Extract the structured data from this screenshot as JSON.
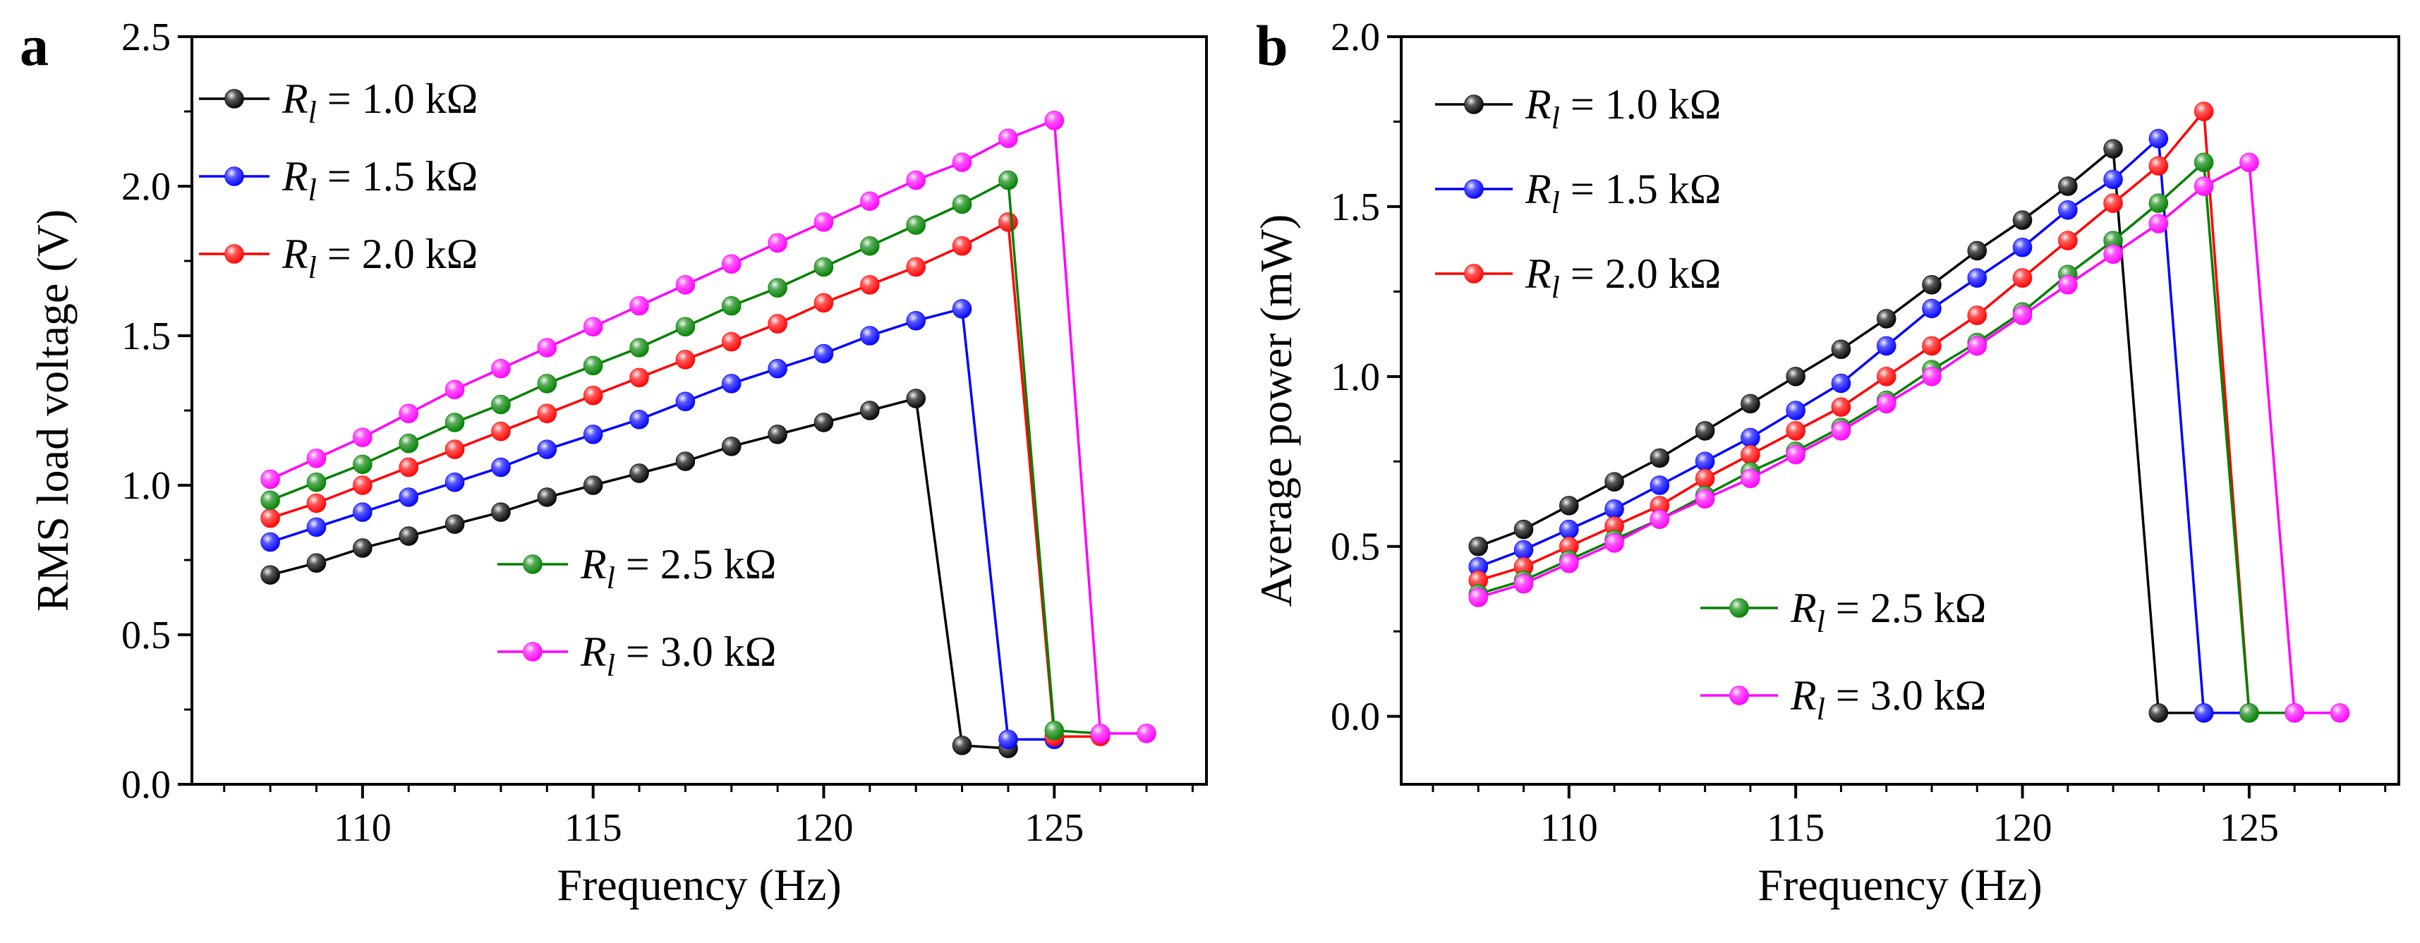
{
  "figure": {
    "panels": [
      {
        "label": "a",
        "title": "",
        "xlabel": "Frequency (Hz)",
        "ylabel": "RMS load voltage (V)"
      },
      {
        "label": "b",
        "title": "",
        "xlabel": "Frequency (Hz)",
        "ylabel": "Average power (mW)"
      }
    ]
  },
  "chart_data": [
    {
      "type": "line",
      "panel": "a",
      "title": "",
      "xlabel": "Frequency (Hz)",
      "ylabel": "RMS load voltage (V)",
      "xlim": [
        106.3,
        128.3
      ],
      "ylim": [
        0,
        2.5
      ],
      "xticks": [
        110,
        115,
        120,
        125
      ],
      "xtick_labels": [
        "110",
        "115",
        "120",
        "125"
      ],
      "yticks": [
        0,
        0.5,
        1.0,
        1.5,
        2.0,
        2.5
      ],
      "ytick_labels": [
        "0.0",
        "0.5",
        "1.0",
        "1.5",
        "2.0",
        "2.5"
      ],
      "legend_groups": [
        {
          "placement": "top-left",
          "series": [
            0,
            1,
            2
          ]
        },
        {
          "placement": "lower-middle",
          "series": [
            3,
            4
          ]
        }
      ],
      "series": [
        {
          "name_symbol": "R",
          "name_sub": "l",
          "name_rest": " = 1.0 kΩ",
          "color": "#000000",
          "x": [
            108,
            109,
            110,
            111,
            112,
            113,
            114,
            115,
            116,
            117,
            118,
            119,
            120,
            121,
            122,
            123,
            124
          ],
          "values": [
            0.7,
            0.74,
            0.79,
            0.83,
            0.87,
            0.91,
            0.96,
            1.0,
            1.04,
            1.08,
            1.13,
            1.17,
            1.21,
            1.25,
            1.29,
            0.13,
            0.12
          ]
        },
        {
          "name_symbol": "R",
          "name_sub": "l",
          "name_rest": " = 1.5 kΩ",
          "color": "#0000ff",
          "x": [
            108,
            109,
            110,
            111,
            112,
            113,
            114,
            115,
            116,
            117,
            118,
            119,
            120,
            121,
            122,
            123,
            124,
            125
          ],
          "values": [
            0.81,
            0.86,
            0.91,
            0.96,
            1.01,
            1.06,
            1.12,
            1.17,
            1.22,
            1.28,
            1.34,
            1.39,
            1.44,
            1.5,
            1.55,
            1.59,
            0.15,
            0.15
          ]
        },
        {
          "name_symbol": "R",
          "name_sub": "l",
          "name_rest": " = 2.0 kΩ",
          "color": "#ff0000",
          "x": [
            108,
            109,
            110,
            111,
            112,
            113,
            114,
            115,
            116,
            117,
            118,
            119,
            120,
            121,
            122,
            123,
            124,
            125,
            126
          ],
          "values": [
            0.89,
            0.94,
            1.0,
            1.06,
            1.12,
            1.18,
            1.24,
            1.3,
            1.36,
            1.42,
            1.48,
            1.54,
            1.61,
            1.67,
            1.73,
            1.8,
            1.88,
            0.16,
            0.16
          ]
        },
        {
          "name_symbol": "R",
          "name_sub": "l",
          "name_rest": " = 2.5 kΩ",
          "color": "#008000",
          "x": [
            108,
            109,
            110,
            111,
            112,
            113,
            114,
            115,
            116,
            117,
            118,
            119,
            120,
            121,
            122,
            123,
            124,
            125,
            126
          ],
          "values": [
            0.95,
            1.01,
            1.07,
            1.14,
            1.21,
            1.27,
            1.34,
            1.4,
            1.46,
            1.53,
            1.6,
            1.66,
            1.73,
            1.8,
            1.87,
            1.94,
            2.02,
            0.18,
            0.17
          ]
        },
        {
          "name_symbol": "R",
          "name_sub": "l",
          "name_rest": " = 3.0 kΩ",
          "color": "#ff00ff",
          "x": [
            108,
            109,
            110,
            111,
            112,
            113,
            114,
            115,
            116,
            117,
            118,
            119,
            120,
            121,
            122,
            123,
            124,
            125,
            126,
            127
          ],
          "values": [
            1.02,
            1.09,
            1.16,
            1.24,
            1.32,
            1.39,
            1.46,
            1.53,
            1.6,
            1.67,
            1.74,
            1.81,
            1.88,
            1.95,
            2.02,
            2.08,
            2.16,
            2.22,
            0.17,
            0.17
          ]
        }
      ]
    },
    {
      "type": "line",
      "panel": "b",
      "title": "",
      "xlabel": "Frequency (Hz)",
      "ylabel": "Average power (mW)",
      "xlim": [
        106.3,
        128.3
      ],
      "ylim": [
        -0.2,
        2.0
      ],
      "xticks": [
        110,
        115,
        120,
        125
      ],
      "xtick_labels": [
        "110",
        "115",
        "120",
        "125"
      ],
      "yticks": [
        0,
        0.5,
        1.0,
        1.5,
        2.0
      ],
      "ytick_labels": [
        "0.0",
        "0.5",
        "1.0",
        "1.5",
        "2.0"
      ],
      "legend_groups": [
        {
          "placement": "top-left",
          "series": [
            0,
            1,
            2
          ]
        },
        {
          "placement": "lower-middle",
          "series": [
            3,
            4
          ]
        }
      ],
      "series": [
        {
          "name_symbol": "R",
          "name_sub": "l",
          "name_rest": " = 1.0 kΩ",
          "color": "#000000",
          "x": [
            108,
            109,
            110,
            111,
            112,
            113,
            114,
            115,
            116,
            117,
            118,
            119,
            120,
            121,
            122,
            123,
            124
          ],
          "values": [
            0.5,
            0.55,
            0.62,
            0.69,
            0.76,
            0.84,
            0.92,
            1.0,
            1.08,
            1.17,
            1.27,
            1.37,
            1.46,
            1.56,
            1.67,
            0.01,
            0.01
          ]
        },
        {
          "name_symbol": "R",
          "name_sub": "l",
          "name_rest": " = 1.5 kΩ",
          "color": "#0000ff",
          "x": [
            108,
            109,
            110,
            111,
            112,
            113,
            114,
            115,
            116,
            117,
            118,
            119,
            120,
            121,
            122,
            123,
            124,
            125
          ],
          "values": [
            0.44,
            0.49,
            0.55,
            0.61,
            0.68,
            0.75,
            0.82,
            0.9,
            0.98,
            1.09,
            1.2,
            1.29,
            1.38,
            1.49,
            1.58,
            1.7,
            0.01,
            0.01
          ]
        },
        {
          "name_symbol": "R",
          "name_sub": "l",
          "name_rest": " = 2.0 kΩ",
          "color": "#ff0000",
          "x": [
            108,
            109,
            110,
            111,
            112,
            113,
            114,
            115,
            116,
            117,
            118,
            119,
            120,
            121,
            122,
            123,
            124,
            125,
            126
          ],
          "values": [
            0.4,
            0.44,
            0.5,
            0.56,
            0.62,
            0.7,
            0.77,
            0.84,
            0.91,
            1.0,
            1.09,
            1.18,
            1.29,
            1.4,
            1.51,
            1.62,
            1.78,
            0.01,
            0.01
          ]
        },
        {
          "name_symbol": "R",
          "name_sub": "l",
          "name_rest": " = 2.5 kΩ",
          "color": "#008000",
          "x": [
            108,
            109,
            110,
            111,
            112,
            113,
            114,
            115,
            116,
            117,
            118,
            119,
            120,
            121,
            122,
            123,
            124,
            125,
            126
          ],
          "values": [
            0.36,
            0.4,
            0.46,
            0.52,
            0.58,
            0.65,
            0.72,
            0.78,
            0.85,
            0.93,
            1.02,
            1.1,
            1.19,
            1.3,
            1.4,
            1.51,
            1.63,
            0.01,
            0.01
          ]
        },
        {
          "name_symbol": "R",
          "name_sub": "l",
          "name_rest": " = 3.0 kΩ",
          "color": "#ff00ff",
          "x": [
            108,
            109,
            110,
            111,
            112,
            113,
            114,
            115,
            116,
            117,
            118,
            119,
            120,
            121,
            122,
            123,
            124,
            125,
            126,
            127
          ],
          "values": [
            0.35,
            0.39,
            0.45,
            0.51,
            0.58,
            0.64,
            0.7,
            0.77,
            0.84,
            0.92,
            1.0,
            1.09,
            1.18,
            1.27,
            1.36,
            1.45,
            1.56,
            1.63,
            0.01,
            0.01
          ]
        }
      ]
    }
  ]
}
